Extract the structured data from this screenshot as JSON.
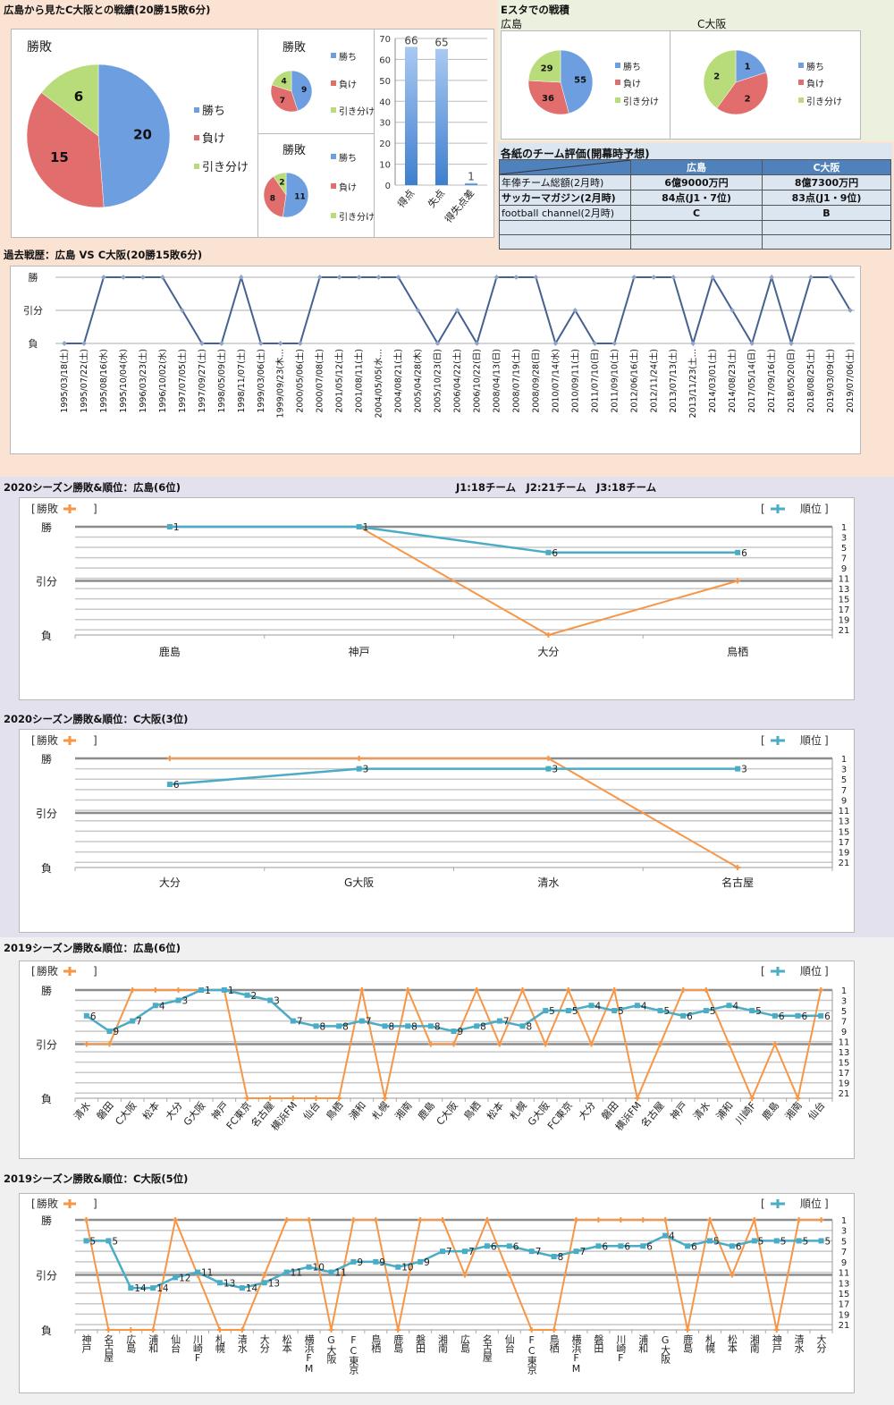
{
  "titles": {
    "head_to_head": "広島から見たC大阪との戦績(20勝15敗6分)",
    "estadium": "Eスタでの戦積",
    "estadium_hiroshima": "広島",
    "estadium_cosaka": "C大阪",
    "evaluation": "各紙のチーム評価(開幕時予想)",
    "past_results": "過去戦歴：広島 VS C大阪(20勝15敗6分)",
    "season2020_hiroshima": "2020シーズン勝敗&順位：広島(6位)",
    "league_info": "J1:18チーム　J2:21チーム　J3:18チーム",
    "season2020_cosaka": "2020シーズン勝敗&順位：C大阪(3位)",
    "season2019_hiroshima": "2019シーズン勝敗&順位：広島(6位)",
    "season2019_cosaka": "2019シーズン勝敗&順位：C大阪(5位)"
  },
  "evaluation_table": {
    "headers": [
      "",
      "広島",
      "C大阪"
    ],
    "rows": [
      [
        "年俸チーム総額(2月時)",
        "6億9000万円",
        "8億7300万円"
      ],
      [
        "サッカーマガジン(2月時)",
        "84点(J1・7位)",
        "83点(J1・9位)"
      ],
      [
        "football channel(2月時)",
        "C",
        "B"
      ],
      [
        "",
        "",
        ""
      ],
      [
        "",
        "",
        ""
      ]
    ]
  },
  "colors": {
    "win": "#6d9fe0",
    "loss": "#e26d6d",
    "draw": "#b9dc7a",
    "result_line": "#f79646",
    "rank_line": "#4bacc6",
    "past_line": "#44618f",
    "bar": "#5b95dc"
  },
  "combo_legend": {
    "open": "[",
    "close": "]",
    "result": "勝敗",
    "rank": "順位"
  },
  "chart_data": [
    {
      "type": "pie",
      "title": "勝敗",
      "labels": [
        "勝ち",
        "負け",
        "引き分け"
      ],
      "values": [
        20,
        15,
        6
      ]
    },
    {
      "type": "pie",
      "title": "勝敗",
      "labels": [
        "勝ち",
        "負け",
        "引き分け"
      ],
      "values": [
        9,
        7,
        4
      ]
    },
    {
      "type": "pie",
      "title": "勝敗",
      "labels": [
        "勝ち",
        "負け",
        "引き分け"
      ],
      "values": [
        11,
        8,
        2
      ]
    },
    {
      "type": "bar",
      "categories": [
        "得点",
        "失点",
        "得失点差"
      ],
      "values": [
        66,
        65,
        1
      ],
      "ylim": [
        0,
        70
      ],
      "yticks": [
        0,
        10,
        20,
        30,
        40,
        50,
        60,
        70
      ]
    },
    {
      "type": "pie",
      "title": "",
      "labels": [
        "勝ち",
        "負け",
        "引き分け"
      ],
      "values": [
        55,
        36,
        29
      ]
    },
    {
      "type": "pie",
      "title": "",
      "labels": [
        "勝ち",
        "負け",
        "引き分け"
      ],
      "values": [
        1,
        2,
        2
      ]
    },
    {
      "type": "line",
      "title": "過去戦歴：広島 VS C大阪(20勝15敗6分)",
      "y_labels": [
        "勝",
        "引分",
        "負"
      ],
      "categories": [
        "1995/03/18(土)",
        "1995/07/22(土)",
        "1995/08/16(水)",
        "1995/10/04(水)",
        "1996/03/23(土)",
        "1996/10/02(水)",
        "1997/07/05(土)",
        "1997/09/27(土)",
        "1998/05/09(土)",
        "1998/11/07(土)",
        "1999/03/06(土)",
        "1999/09/23(木…",
        "2000/05/06(土)",
        "2000/07/08(土)",
        "2001/05/12(土)",
        "2001/08/11(土)",
        "2004/05/05(水…",
        "2004/08/21(土)",
        "2005/04/28(木)",
        "2005/10/23(日)",
        "2006/04/22(土)",
        "2006/10/22(日)",
        "2008/04/13(日)",
        "2008/07/19(土)",
        "2008/09/28(日)",
        "2010/07/14(水)",
        "2010/09/11(土)",
        "2011/07/10(日)",
        "2011/09/10(土)",
        "2012/06/16(土)",
        "2012/11/24(土)",
        "2013/07/13(土)",
        "2013/11/23(土…",
        "2014/03/01(土)",
        "2014/08/23(土)",
        "2017/05/14(日)",
        "2017/09/16(土)",
        "2018/05/20(日)",
        "2018/08/25(土)",
        "2019/03/09(土)",
        "2019/07/06(土)"
      ],
      "results": [
        "L",
        "L",
        "W",
        "W",
        "W",
        "W",
        "D",
        "L",
        "L",
        "W",
        "L",
        "L",
        "L",
        "W",
        "W",
        "W",
        "W",
        "W",
        "D",
        "L",
        "D",
        "L",
        "W",
        "W",
        "W",
        "L",
        "D",
        "L",
        "L",
        "W",
        "W",
        "W",
        "L",
        "W",
        "D",
        "L",
        "W",
        "L",
        "W",
        "W",
        "D"
      ]
    },
    {
      "type": "line",
      "title": "2020シーズン勝敗&順位：広島(6位)",
      "y_left_labels": [
        "勝",
        "引分",
        "負"
      ],
      "y_right_ticks": [
        1,
        3,
        5,
        7,
        9,
        11,
        13,
        15,
        17,
        19,
        21
      ],
      "rank_range": [
        1,
        22
      ],
      "categories": [
        "鹿島",
        "神戸",
        "大分",
        "鳥栖"
      ],
      "results": [
        "W",
        "W",
        "L",
        "D"
      ],
      "ranks": [
        1,
        1,
        6,
        6
      ]
    },
    {
      "type": "line",
      "title": "2020シーズン勝敗&順位：C大阪(3位)",
      "y_left_labels": [
        "勝",
        "引分",
        "負"
      ],
      "y_right_ticks": [
        1,
        3,
        5,
        7,
        9,
        11,
        13,
        15,
        17,
        19,
        21
      ],
      "rank_range": [
        1,
        22
      ],
      "categories": [
        "大分",
        "G大阪",
        "清水",
        "名古屋"
      ],
      "results": [
        "W",
        "W",
        "W",
        "L"
      ],
      "ranks": [
        6,
        3,
        3,
        3
      ]
    },
    {
      "type": "line",
      "title": "2019シーズン勝敗&順位：広島(6位)",
      "y_left_labels": [
        "勝",
        "引分",
        "負"
      ],
      "y_right_ticks": [
        1,
        3,
        5,
        7,
        9,
        11,
        13,
        15,
        17,
        19,
        21
      ],
      "rank_range": [
        1,
        22
      ],
      "categories": [
        "清水",
        "磐田",
        "C大阪",
        "松本",
        "大分",
        "G大阪",
        "神戸",
        "FC東京",
        "名古屋",
        "横浜FM",
        "仙台",
        "鳥栖",
        "浦和",
        "札幌",
        "湘南",
        "鹿島",
        "C大阪",
        "鳥栖",
        "松本",
        "札幌",
        "G大阪",
        "FC東京",
        "大分",
        "磐田",
        "横浜FM",
        "名古屋",
        "神戸",
        "清水",
        "浦和",
        "川崎F",
        "鹿島",
        "湘南",
        "仙台"
      ],
      "results": [
        "D",
        "D",
        "W",
        "W",
        "W",
        "W",
        "W",
        "L",
        "L",
        "L",
        "L",
        "L",
        "W",
        "L",
        "W",
        "D",
        "D",
        "W",
        "D",
        "W",
        "D",
        "W",
        "D",
        "W",
        "L",
        "D",
        "W",
        "W",
        "D",
        "L",
        "D",
        "L",
        "W"
      ],
      "ranks": [
        6,
        9,
        7,
        4,
        3,
        1,
        1,
        2,
        3,
        7,
        8,
        8,
        7,
        8,
        8,
        8,
        9,
        8,
        7,
        8,
        5,
        5,
        4,
        5,
        4,
        5,
        6,
        5,
        4,
        5,
        6,
        6,
        6
      ]
    },
    {
      "type": "line",
      "title": "2019シーズン勝敗&順位：C大阪(5位)",
      "y_left_labels": [
        "勝",
        "引分",
        "負"
      ],
      "y_right_ticks": [
        1,
        3,
        5,
        7,
        9,
        11,
        13,
        15,
        17,
        19,
        21
      ],
      "rank_range": [
        1,
        22
      ],
      "categories": [
        "神戸",
        "名古屋",
        "広島",
        "浦和",
        "仙台",
        "川崎F",
        "札幌",
        "清水",
        "大分",
        "松本",
        "横浜FM",
        "G大阪",
        "FC東京",
        "鳥栖",
        "鹿島",
        "磐田",
        "湘南",
        "広島",
        "名古屋",
        "仙台",
        "FC東京",
        "鳥栖",
        "横浜FM",
        "磐田",
        "川崎F",
        "浦和",
        "G大阪",
        "鹿島",
        "札幌",
        "松本",
        "湘南",
        "神戸",
        "清水",
        "大分"
      ],
      "results": [
        "W",
        "L",
        "L",
        "L",
        "W",
        "D",
        "L",
        "L",
        "D",
        "W",
        "W",
        "L",
        "W",
        "W",
        "L",
        "W",
        "W",
        "D",
        "W",
        "D",
        "L",
        "L",
        "W",
        "W",
        "W",
        "W",
        "W",
        "L",
        "W",
        "D",
        "W",
        "L",
        "W",
        "W"
      ],
      "ranks": [
        5,
        5,
        14,
        14,
        12,
        11,
        13,
        14,
        13,
        11,
        10,
        11,
        9,
        9,
        10,
        9,
        7,
        7,
        6,
        6,
        7,
        8,
        7,
        6,
        6,
        6,
        4,
        6,
        5,
        6,
        5,
        5,
        5,
        5
      ]
    }
  ]
}
